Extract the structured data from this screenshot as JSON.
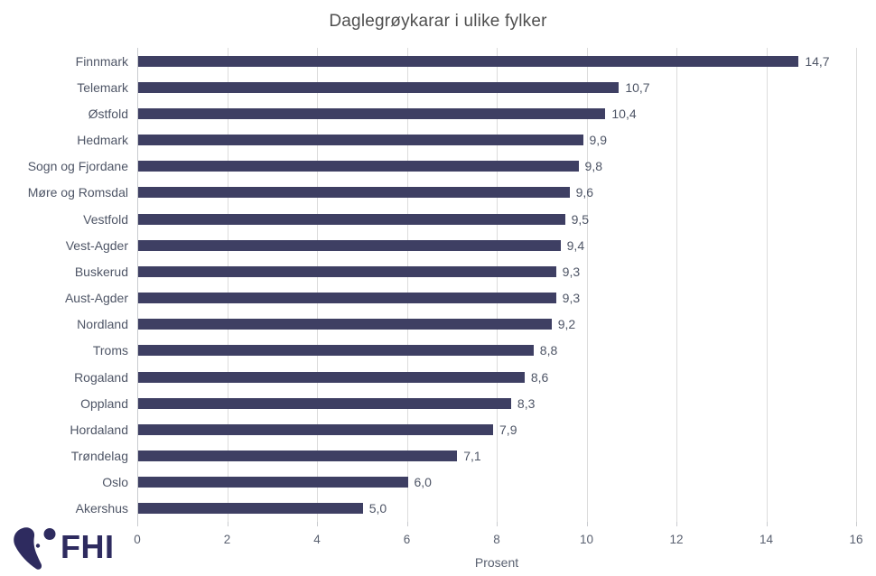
{
  "title": "Daglegrøykarar i ulike fylker",
  "chart_data": {
    "type": "bar",
    "orientation": "horizontal",
    "title": "Daglegrøykarar i ulike fylker",
    "xlabel": "Prosent",
    "ylabel": "",
    "xlim": [
      0,
      16
    ],
    "xticks": [
      "0",
      "2",
      "4",
      "6",
      "8",
      "10",
      "12",
      "14",
      "16"
    ],
    "grid": true,
    "legend": false,
    "categories": [
      "Finnmark",
      "Telemark",
      "Østfold",
      "Hedmark",
      "Sogn og Fjordane",
      "Møre og Romsdal",
      "Vestfold",
      "Vest-Agder",
      "Buskerud",
      "Aust-Agder",
      "Nordland",
      "Troms",
      "Rogaland",
      "Oppland",
      "Hordaland",
      "Trøndelag",
      "Oslo",
      "Akershus"
    ],
    "values": [
      14.7,
      10.7,
      10.4,
      9.9,
      9.8,
      9.6,
      9.5,
      9.4,
      9.3,
      9.3,
      9.2,
      8.8,
      8.6,
      8.3,
      7.9,
      7.1,
      6.0,
      5.0
    ],
    "value_labels": [
      "14,7",
      "10,7",
      "10,4",
      "9,9",
      "9,8",
      "9,6",
      "9,5",
      "9,4",
      "9,3",
      "9,3",
      "9,2",
      "8,8",
      "8,6",
      "8,3",
      "7,9",
      "7,1",
      "6,0",
      "5,0"
    ]
  },
  "footer": {
    "logo_text": "FHI"
  },
  "colors": {
    "bar": "#3E3F63",
    "gridline": "#DCDCDC",
    "axis_line": "#C9CBCF",
    "title_text": "#4F4F4F",
    "label_text": "#4E5566",
    "tick_text": "#596070",
    "logo": "#2E2B5F"
  }
}
